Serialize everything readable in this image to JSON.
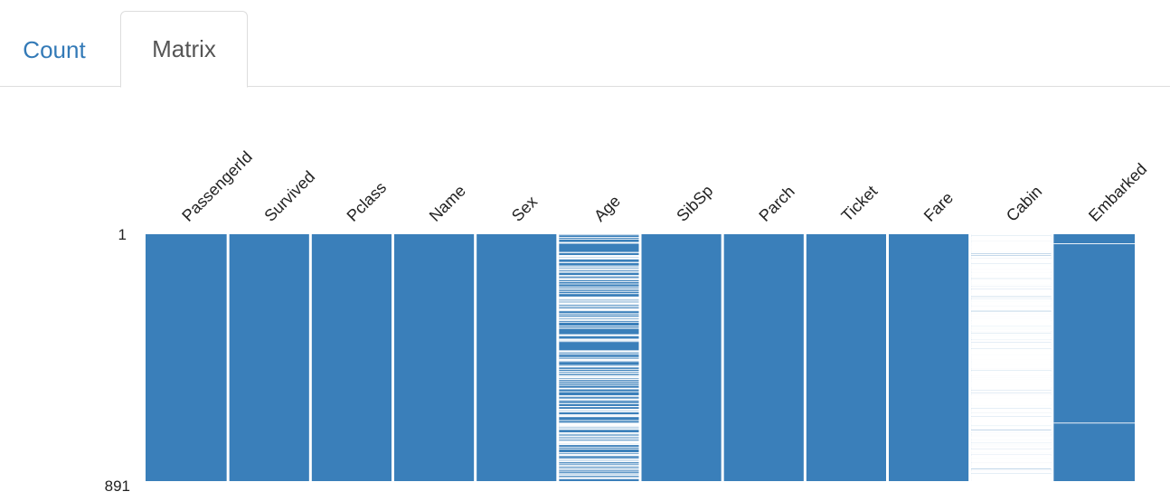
{
  "tabs": [
    {
      "label": "Count",
      "active": false
    },
    {
      "label": "Matrix",
      "active": true
    }
  ],
  "colors": {
    "tab_link": "#337ab7",
    "tab_active_text": "#555555",
    "present": "#3a7fba",
    "missing": "#ffffff"
  },
  "chart_data": {
    "type": "heatmap",
    "title": "",
    "xlabel": "",
    "ylabel": "",
    "columns": [
      "PassengerId",
      "Survived",
      "Pclass",
      "Name",
      "Sex",
      "Age",
      "SibSp",
      "Parch",
      "Ticket",
      "Fare",
      "Cabin",
      "Embarked"
    ],
    "row_tick_labels": [
      "1",
      "891"
    ],
    "row_range": [
      1,
      891
    ],
    "missing_counts": [
      0,
      0,
      0,
      0,
      0,
      177,
      0,
      0,
      0,
      0,
      687,
      2
    ],
    "grid": false
  }
}
